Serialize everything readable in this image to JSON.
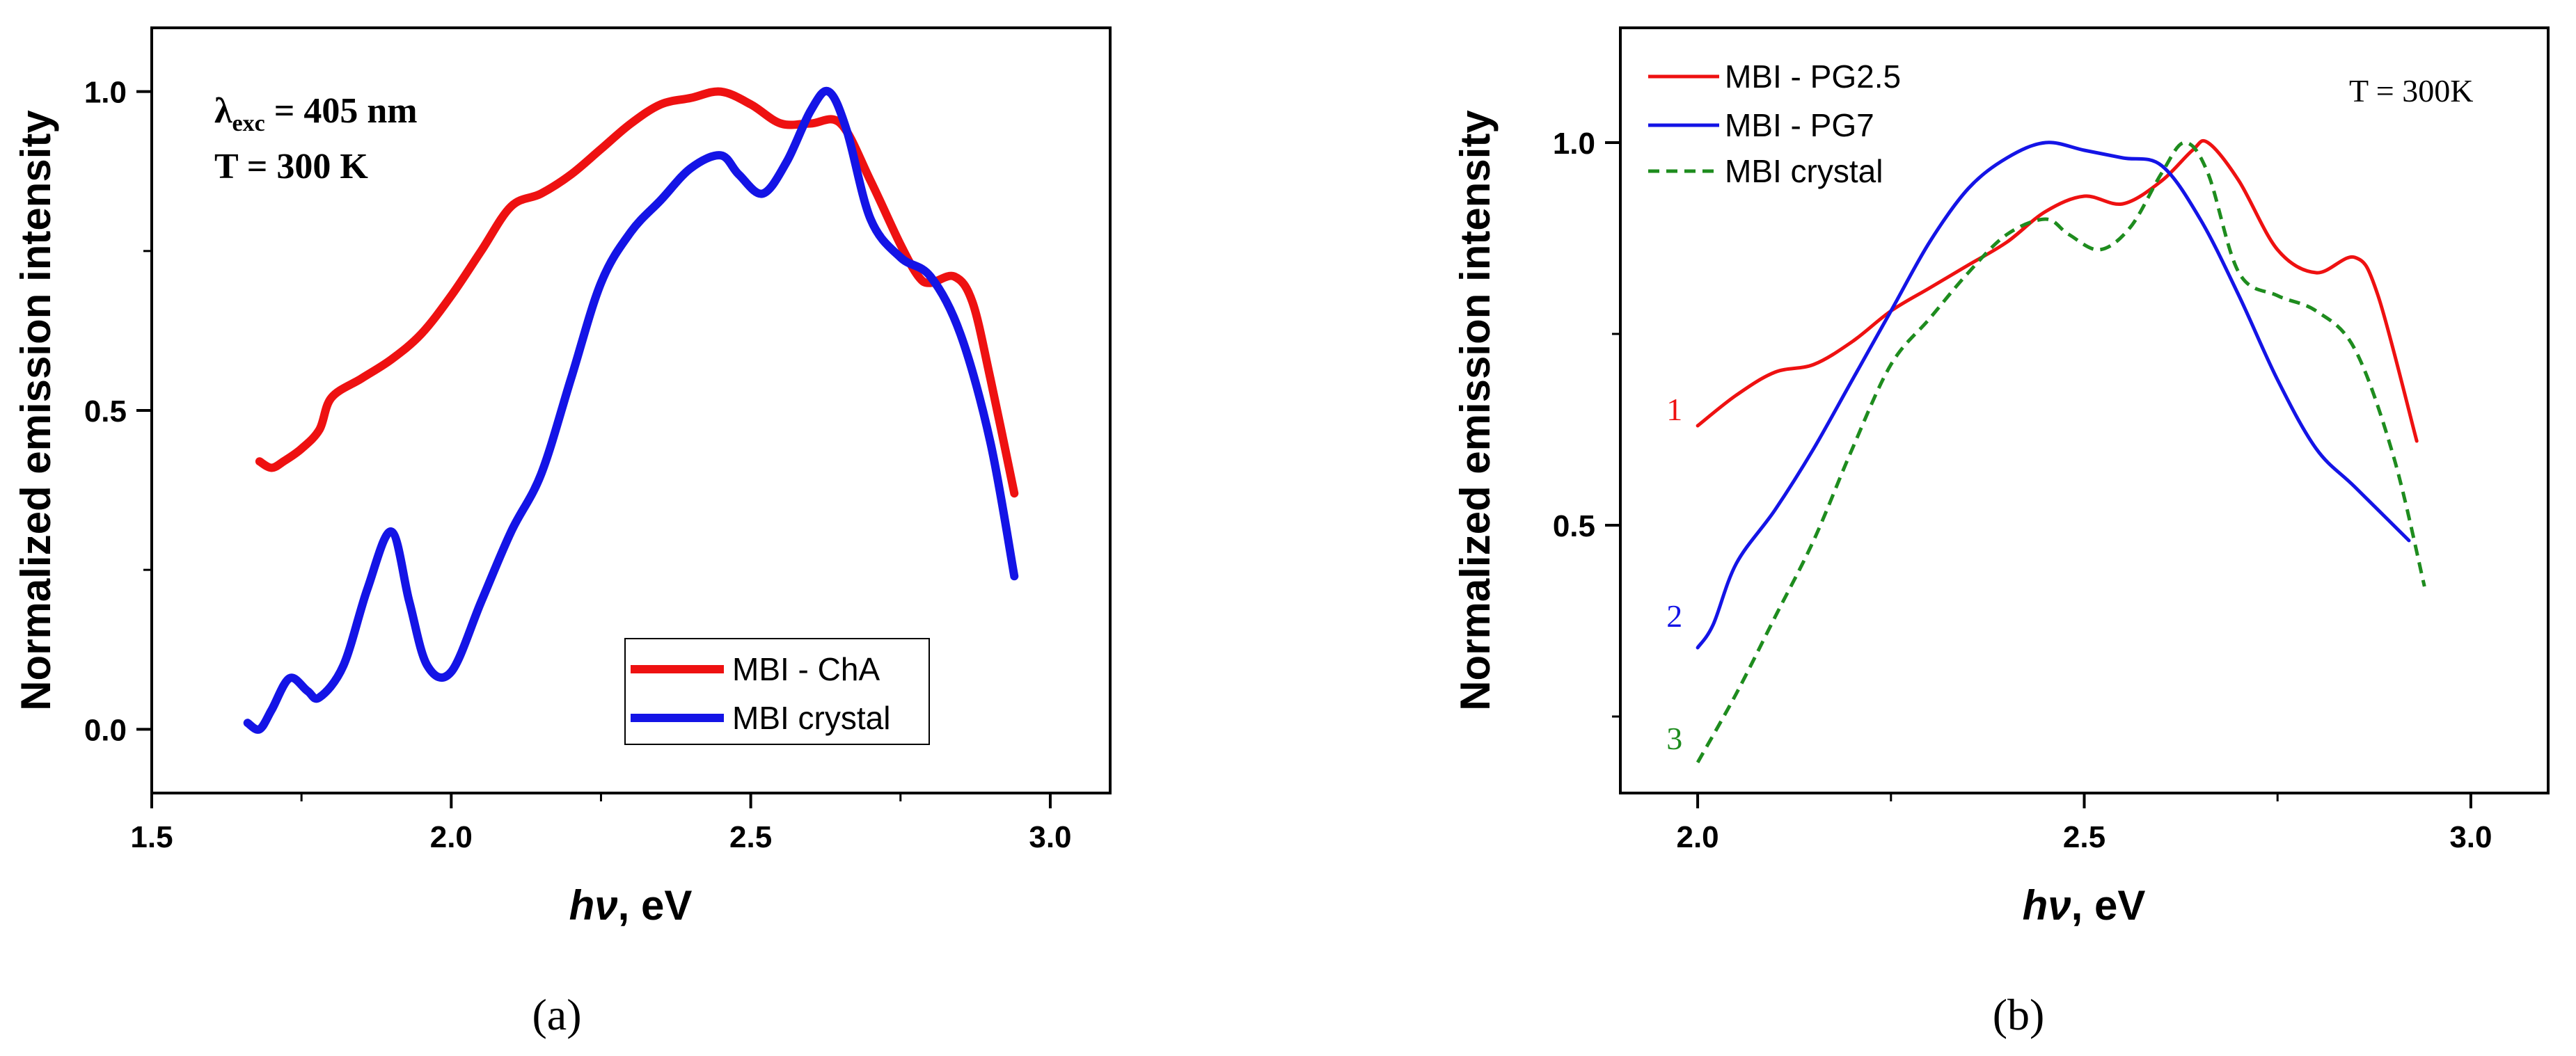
{
  "chart_data": [
    {
      "type": "line",
      "panel_label": "(a)",
      "xlabel": "hν, eV",
      "xlabel_prefix": "hν",
      "xlabel_suffix": ", eV",
      "ylabel": "Normalized emission intensity",
      "xlim": [
        1.5,
        3.1
      ],
      "ylim": [
        -0.1,
        1.1
      ],
      "xticks": [
        1.5,
        2.0,
        2.5,
        3.0
      ],
      "xtick_labels": [
        "1.5",
        "2.0",
        "2.5",
        "3.0"
      ],
      "yticks": [
        0.0,
        0.5,
        1.0
      ],
      "ytick_labels": [
        "0.0",
        "0.5",
        "1.0"
      ],
      "annotations": [
        {
          "text_main": "λ",
          "text_sub": "exc",
          "text_rest": " = 405 nm"
        },
        {
          "text_main": "T = 300 K"
        }
      ],
      "legend_position": "bottom-right",
      "series": [
        {
          "name": "MBI - ChA",
          "color": "#ee1111",
          "style": "solid",
          "x": [
            1.68,
            1.7,
            1.72,
            1.75,
            1.78,
            1.8,
            1.85,
            1.9,
            1.95,
            2.0,
            2.05,
            2.1,
            2.15,
            2.2,
            2.25,
            2.3,
            2.35,
            2.4,
            2.45,
            2.5,
            2.55,
            2.6,
            2.65,
            2.7,
            2.75,
            2.78,
            2.8,
            2.84,
            2.87,
            2.9,
            2.94
          ],
          "y": [
            0.42,
            0.41,
            0.42,
            0.44,
            0.47,
            0.52,
            0.55,
            0.58,
            0.62,
            0.68,
            0.75,
            0.82,
            0.84,
            0.87,
            0.91,
            0.95,
            0.98,
            0.99,
            1.0,
            0.98,
            0.95,
            0.95,
            0.95,
            0.86,
            0.76,
            0.71,
            0.7,
            0.71,
            0.67,
            0.55,
            0.37
          ]
        },
        {
          "name": "MBI crystal",
          "color": "#1414e6",
          "style": "solid",
          "x": [
            1.66,
            1.68,
            1.7,
            1.73,
            1.76,
            1.78,
            1.82,
            1.86,
            1.9,
            1.93,
            1.96,
            2.0,
            2.05,
            2.1,
            2.15,
            2.2,
            2.25,
            2.3,
            2.35,
            2.4,
            2.45,
            2.48,
            2.52,
            2.56,
            2.6,
            2.63,
            2.66,
            2.7,
            2.75,
            2.8,
            2.85,
            2.9,
            2.94
          ],
          "y": [
            0.01,
            0.0,
            0.03,
            0.08,
            0.06,
            0.05,
            0.1,
            0.22,
            0.31,
            0.2,
            0.1,
            0.09,
            0.2,
            0.31,
            0.4,
            0.55,
            0.7,
            0.78,
            0.83,
            0.88,
            0.9,
            0.87,
            0.84,
            0.89,
            0.97,
            1.0,
            0.94,
            0.8,
            0.74,
            0.71,
            0.62,
            0.45,
            0.24
          ]
        }
      ]
    },
    {
      "type": "line",
      "panel_label": "(b)",
      "xlabel": "hν, eV",
      "xlabel_prefix": "hν",
      "xlabel_suffix": ", eV",
      "ylabel": "Normalized emission intensity",
      "xlim": [
        1.9,
        3.1
      ],
      "ylim": [
        0.15,
        1.15
      ],
      "xticks": [
        2.0,
        2.5,
        3.0
      ],
      "xtick_labels": [
        "2.0",
        "2.5",
        "3.0"
      ],
      "yticks": [
        0.5,
        1.0
      ],
      "ytick_labels": [
        "0.5",
        "1.0"
      ],
      "annotations": [
        {
          "text_main": "T = 300K"
        }
      ],
      "curve_numbers": [
        {
          "text": "1",
          "color": "#ee1111",
          "x": 1.97,
          "y": 0.65
        },
        {
          "text": "2",
          "color": "#1414e6",
          "x": 1.97,
          "y": 0.38
        },
        {
          "text": "3",
          "color": "#1e8c1e",
          "x": 1.97,
          "y": 0.22
        }
      ],
      "legend_position": "top-left",
      "series": [
        {
          "name": "MBI - PG2.5",
          "color": "#ee1111",
          "style": "solid",
          "x": [
            2.0,
            2.05,
            2.1,
            2.15,
            2.2,
            2.25,
            2.3,
            2.35,
            2.4,
            2.45,
            2.5,
            2.55,
            2.6,
            2.64,
            2.66,
            2.7,
            2.75,
            2.8,
            2.85,
            2.88,
            2.93
          ],
          "y": [
            0.63,
            0.67,
            0.7,
            0.71,
            0.74,
            0.78,
            0.81,
            0.84,
            0.87,
            0.91,
            0.93,
            0.92,
            0.95,
            0.99,
            1.0,
            0.95,
            0.86,
            0.83,
            0.85,
            0.8,
            0.61
          ]
        },
        {
          "name": "MBI - PG7",
          "color": "#1414e6",
          "style": "solid",
          "x": [
            2.0,
            2.02,
            2.05,
            2.1,
            2.15,
            2.2,
            2.25,
            2.3,
            2.35,
            2.4,
            2.45,
            2.5,
            2.55,
            2.6,
            2.65,
            2.7,
            2.75,
            2.8,
            2.85,
            2.92
          ],
          "y": [
            0.34,
            0.37,
            0.45,
            0.52,
            0.6,
            0.69,
            0.78,
            0.87,
            0.94,
            0.98,
            1.0,
            0.99,
            0.98,
            0.97,
            0.9,
            0.8,
            0.69,
            0.6,
            0.55,
            0.48
          ]
        },
        {
          "name": "MBI crystal",
          "color": "#1e8c1e",
          "style": "dashed",
          "x": [
            2.0,
            2.05,
            2.1,
            2.15,
            2.2,
            2.25,
            2.3,
            2.35,
            2.4,
            2.45,
            2.48,
            2.52,
            2.56,
            2.6,
            2.63,
            2.66,
            2.7,
            2.75,
            2.8,
            2.85,
            2.9,
            2.94
          ],
          "y": [
            0.19,
            0.28,
            0.38,
            0.48,
            0.6,
            0.71,
            0.77,
            0.83,
            0.88,
            0.9,
            0.88,
            0.86,
            0.89,
            0.96,
            1.0,
            0.96,
            0.83,
            0.8,
            0.78,
            0.73,
            0.59,
            0.42
          ]
        }
      ]
    }
  ]
}
